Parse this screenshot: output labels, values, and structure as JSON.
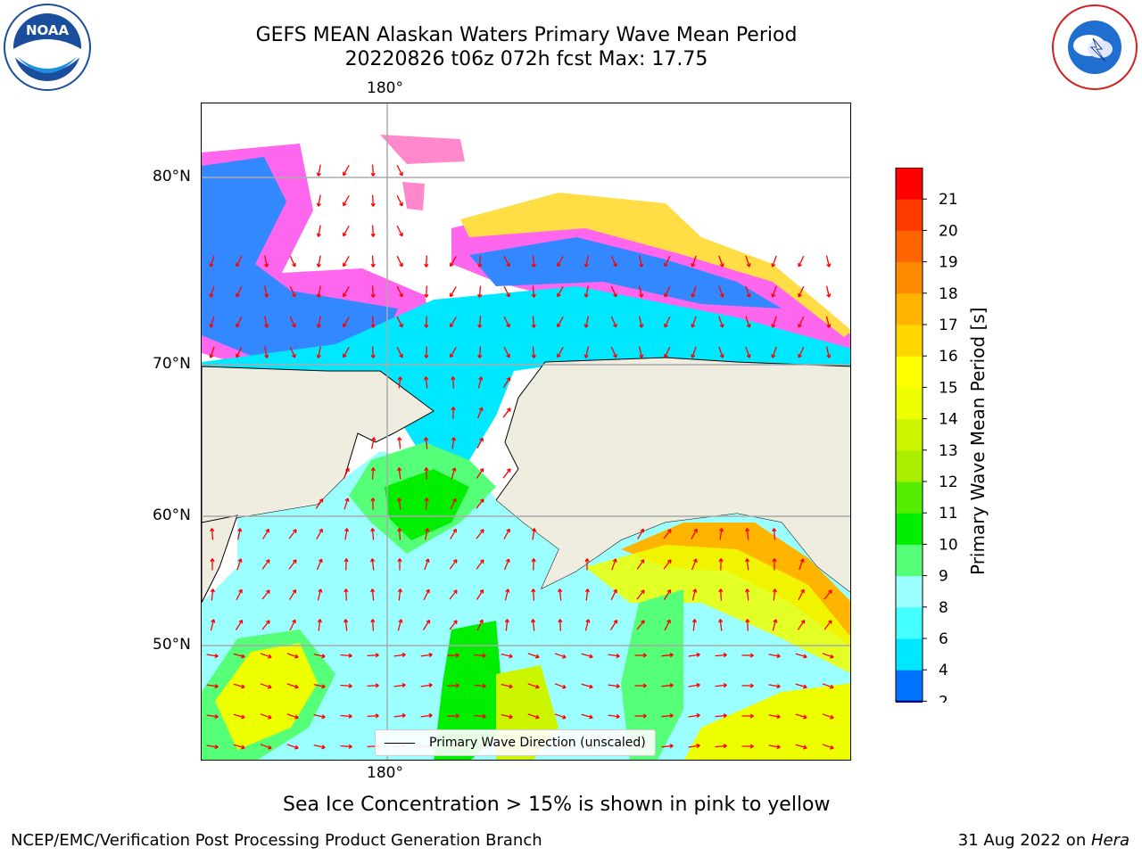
{
  "title_line1": "GEFS MEAN Alaskan Waters Primary Wave Mean Period",
  "title_line2": "20220826 t06z 072h fcst   Max: 17.75",
  "logo_left_text": "NOAA",
  "logo_left_ring": "NATIONAL OCEANIC AND ATMOSPHERIC ADMINISTRATION · U.S. DEPARTMENT OF COMMERCE",
  "logo_right_ring": "NATIONAL WEATHER SERVICE",
  "axes": {
    "top_lon_label": "180°",
    "bottom_lon_label": "180°",
    "lat_labels": [
      "80°N",
      "70°N",
      "60°N",
      "50°N"
    ]
  },
  "legend_label": "Primary Wave Direction (unscaled)",
  "colorbar": {
    "title": "Primary Wave Mean Period [s]",
    "ticks": [
      "2",
      "4",
      "6",
      "8",
      "9",
      "10",
      "11",
      "12",
      "13",
      "14",
      "15",
      "16",
      "17",
      "18",
      "19",
      "20",
      "21"
    ],
    "colors": [
      "#0072ff",
      "#00e8ff",
      "#44ffff",
      "#9cffff",
      "#55ff77",
      "#00ee00",
      "#55ee00",
      "#aaee00",
      "#ccf500",
      "#eeff00",
      "#ffff00",
      "#ffd700",
      "#ffb400",
      "#ff8c00",
      "#ff6400",
      "#ff3c00",
      "#ff0000"
    ],
    "under_color": "#0000ff"
  },
  "note": "Sea Ice Concentration > 15% is shown in pink to yellow",
  "footer_left": "NCEP/EMC/Verification Post Processing Product Generation Branch",
  "footer_right_prefix": "31 Aug 2022 on ",
  "footer_right_host": "Hera",
  "colors": {
    "land": "#efede0",
    "arrow": "#ff0000",
    "grid": "#aaaaaa",
    "ice_pink": "#ff66ee",
    "ice_yellow": "#ffdd44"
  }
}
